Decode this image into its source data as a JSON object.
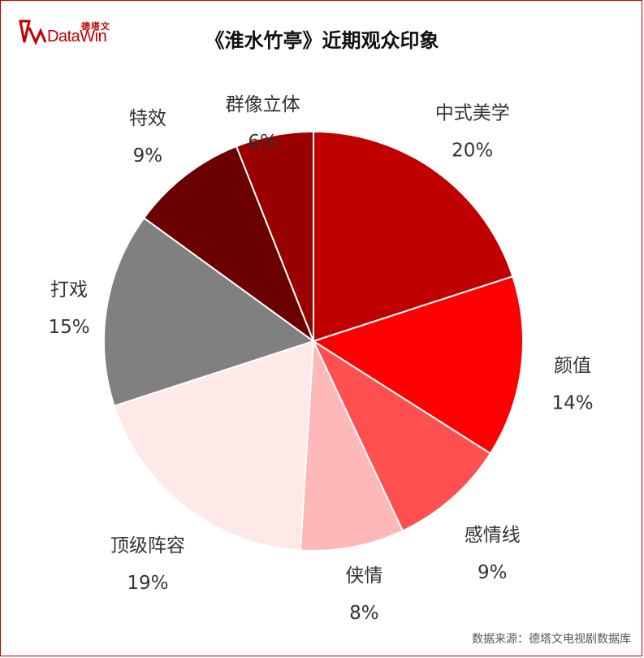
{
  "brand": {
    "logo_cn": "德塔文",
    "logo_en": "DataWin"
  },
  "title": "《淮水竹亭》近期观众印象",
  "source": "数据来源：德塔文电视剧数据库",
  "chart_data": {
    "type": "pie",
    "start_angle_deg": 0,
    "direction": "clockwise",
    "slices": [
      {
        "label": "中式美学",
        "value": 20,
        "pct": "20%",
        "color": "#c00000",
        "label_pos": "outside-right"
      },
      {
        "label": "颜值",
        "value": 14,
        "pct": "14%",
        "color": "#ff0000",
        "label_pos": "outside-right"
      },
      {
        "label": "感情线",
        "value": 9,
        "pct": "9%",
        "color": "#ff5050",
        "label_pos": "outside-right"
      },
      {
        "label": "侠情",
        "value": 8,
        "pct": "8%",
        "color": "#ffb8b8",
        "label_pos": "outside-bottom"
      },
      {
        "label": "顶级阵容",
        "value": 19,
        "pct": "19%",
        "color": "#ffe8e8",
        "label_pos": "outside-left"
      },
      {
        "label": "打戏",
        "value": 15,
        "pct": "15%",
        "color": "#808080",
        "label_pos": "outside-left"
      },
      {
        "label": "特效",
        "value": 9,
        "pct": "9%",
        "color": "#6b0000",
        "label_pos": "outside-left"
      },
      {
        "label": "群像立体",
        "value": 6,
        "pct": "6%",
        "color": "#990000",
        "label_pos": "outside-top"
      }
    ]
  }
}
